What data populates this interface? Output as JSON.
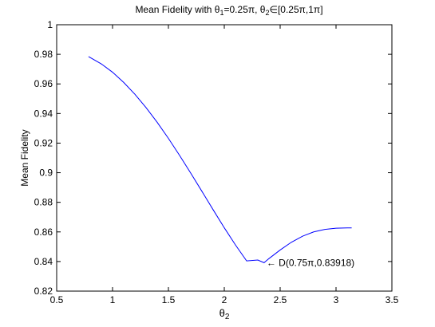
{
  "chart_data": {
    "type": "line",
    "title": {
      "prefix": "Mean Fidelity with θ",
      "sub1": "1",
      "middle": "=0.25π, θ",
      "sub2": "2",
      "suffix": "∈[0.25π,1π]"
    },
    "xlabel": {
      "base": "θ",
      "sub": "2"
    },
    "ylabel": "Mean Fidelity",
    "xlim": [
      0.5,
      3.5
    ],
    "ylim": [
      0.82,
      1.0
    ],
    "xticks": [
      0.5,
      1,
      1.5,
      2,
      2.5,
      3,
      3.5
    ],
    "xtick_labels": [
      "0.5",
      "1",
      "1.5",
      "2",
      "2.5",
      "3",
      "3.5"
    ],
    "yticks": [
      0.82,
      0.84,
      0.86,
      0.88,
      0.9,
      0.92,
      0.94,
      0.96,
      0.98,
      1.0
    ],
    "ytick_labels": [
      "0.82",
      "0.84",
      "0.86",
      "0.88",
      "0.9",
      "0.92",
      "0.94",
      "0.96",
      "0.98",
      "1"
    ],
    "grid": false,
    "series": [
      {
        "color": "#0000ff",
        "x": [
          0.785,
          0.9,
          1.0,
          1.1,
          1.2,
          1.3,
          1.4,
          1.5,
          1.6,
          1.7,
          1.8,
          1.9,
          2.0,
          2.1,
          2.2,
          2.3,
          2.356,
          2.4,
          2.5,
          2.6,
          2.7,
          2.8,
          2.9,
          3.0,
          3.1,
          3.14
        ],
        "y": [
          0.9785,
          0.9735,
          0.9679,
          0.961,
          0.953,
          0.944,
          0.934,
          0.9232,
          0.9117,
          0.8997,
          0.8874,
          0.875,
          0.8628,
          0.8512,
          0.8404,
          0.841,
          0.8392,
          0.842,
          0.8478,
          0.853,
          0.8571,
          0.86,
          0.8617,
          0.8625,
          0.8627,
          0.8627
        ]
      }
    ],
    "annotations": [
      {
        "x": 2.356,
        "y": 0.8392,
        "text": "← D(0.75π,0.83918)"
      }
    ]
  }
}
